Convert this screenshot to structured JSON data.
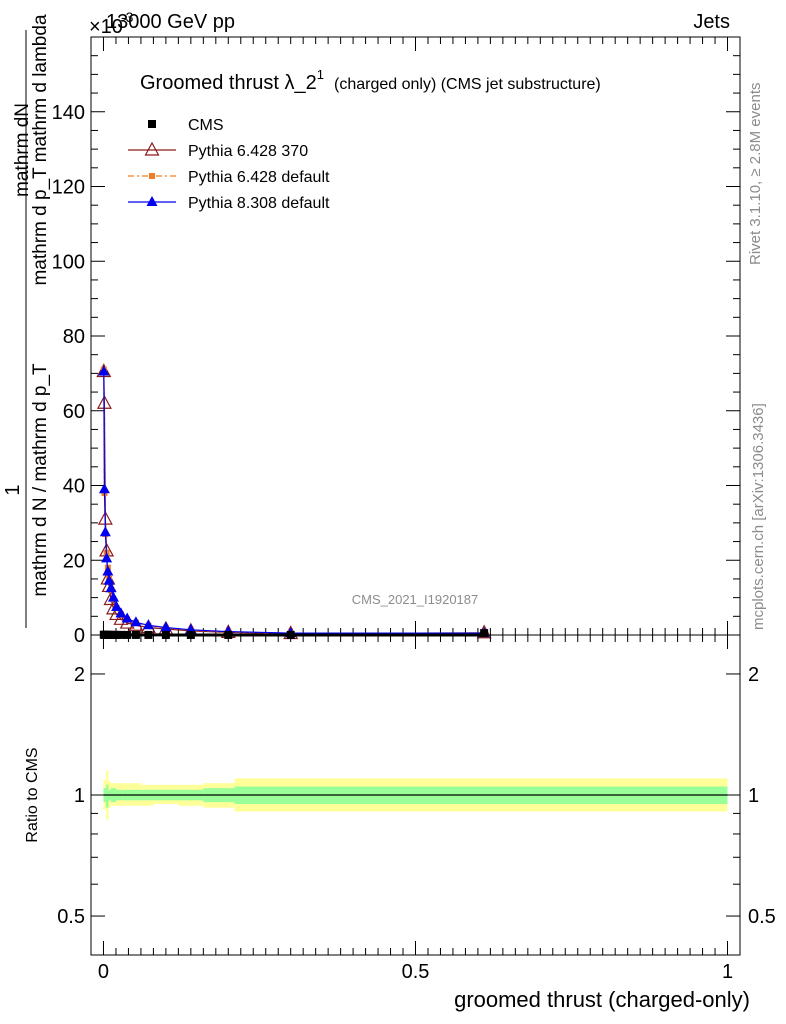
{
  "header": {
    "left": "13000 GeV pp",
    "right": "Jets",
    "exponent_prefix": "×10",
    "exponent_sup": "-3"
  },
  "side_labels": {
    "rivet": "Rivet 3.1.10, ≥ 2.8M events",
    "mcplots": "mcplots.cern.ch [arXiv:1306.3436]"
  },
  "analysis_id": "CMS_2021_I1920187",
  "chart_data": [
    {
      "type": "line",
      "title": "Groomed thrust",
      "title_lambda": "λ_2",
      "title_sup": "1",
      "subtitle": "(charged only) (CMS jet substructure)",
      "ylabel_top": "1",
      "ylabel_num": "mathrm dN",
      "ylabel_den_num": "mathrm d p_T mathrm d lambda",
      "ylabel_den": "mathrm d N / mathrm d p_T",
      "ylim": [
        0,
        160
      ],
      "yticks": [
        0,
        20,
        40,
        60,
        80,
        100,
        120,
        140
      ],
      "xlim": [
        -0.02,
        1.02
      ],
      "legend_position": "top-left",
      "series": [
        {
          "name": "CMS",
          "color": "#000000",
          "marker": "square",
          "x": [
            0.0005,
            0.0015,
            0.003,
            0.005,
            0.007,
            0.009,
            0.012,
            0.016,
            0.021,
            0.028,
            0.038,
            0.052,
            0.072,
            0.1,
            0.14,
            0.2,
            0.3,
            0.61
          ],
          "y": [
            0.08,
            0.06,
            0.05,
            0.05,
            0.04,
            0.04,
            0.04,
            0.03,
            0.03,
            0.03,
            0.02,
            0.02,
            0.02,
            0.01,
            0.01,
            0.01,
            0.01,
            0.5
          ]
        },
        {
          "name": "Pythia 6.428 370",
          "color": "#8b1a1a",
          "marker": "triangle-open",
          "x": [
            0.0005,
            0.0015,
            0.003,
            0.005,
            0.007,
            0.009,
            0.012,
            0.016,
            0.021,
            0.028,
            0.038,
            0.052,
            0.072,
            0.1,
            0.14,
            0.2,
            0.3,
            0.61
          ],
          "y": [
            70.5,
            62,
            31,
            22.5,
            15,
            13,
            9.5,
            7,
            5.5,
            4.2,
            3.2,
            2.6,
            2.0,
            1.6,
            1.1,
            0.7,
            0.4,
            0.6
          ]
        },
        {
          "name": "Pythia 6.428 default",
          "color": "#f07e26",
          "marker": "square-small",
          "x": [
            0.0005,
            0.0015,
            0.003,
            0.005,
            0.007,
            0.009,
            0.012,
            0.016,
            0.021,
            0.028,
            0.038,
            0.052,
            0.072,
            0.1,
            0.14,
            0.2,
            0.3,
            0.61
          ],
          "y": [
            71,
            38,
            27,
            22,
            18,
            15,
            12,
            9.5,
            7.2,
            5.5,
            4.2,
            3.3,
            2.5,
            1.9,
            1.3,
            0.8,
            0.45,
            0.5
          ]
        },
        {
          "name": "Pythia 8.308 default",
          "color": "#0000ee",
          "marker": "triangle",
          "x": [
            0.0005,
            0.0015,
            0.003,
            0.005,
            0.007,
            0.009,
            0.012,
            0.016,
            0.021,
            0.028,
            0.038,
            0.052,
            0.072,
            0.1,
            0.14,
            0.2,
            0.3,
            0.61
          ],
          "y": [
            70.5,
            39,
            27.5,
            20.5,
            17,
            14.5,
            12.5,
            10,
            7.5,
            5.8,
            4.4,
            3.4,
            2.6,
            2.0,
            1.4,
            0.9,
            0.5,
            0.5
          ]
        }
      ]
    },
    {
      "type": "area",
      "ylabel": "Ratio to CMS",
      "xlabel": "groomed thrust (charged-only)",
      "scale": "log",
      "ylim": [
        0.4,
        2.5
      ],
      "yticks": [
        0.5,
        1,
        2
      ],
      "xlim": [
        -0.02,
        1.02
      ],
      "xticks": [
        0,
        0.5,
        1
      ],
      "reference": 1,
      "bands": {
        "x_edges": [
          0,
          0.004,
          0.008,
          0.012,
          0.02,
          0.03,
          0.045,
          0.06,
          0.08,
          0.12,
          0.16,
          0.21,
          1.0
        ],
        "inner_lo": [
          0.96,
          0.93,
          0.97,
          0.96,
          0.97,
          0.97,
          0.97,
          0.97,
          0.97,
          0.97,
          0.96,
          0.95
        ],
        "inner_hi": [
          1.04,
          1.06,
          1.03,
          1.04,
          1.03,
          1.03,
          1.03,
          1.03,
          1.03,
          1.03,
          1.04,
          1.05
        ],
        "outer_lo": [
          0.92,
          0.87,
          0.93,
          0.94,
          0.94,
          0.94,
          0.94,
          0.94,
          0.95,
          0.94,
          0.93,
          0.91
        ],
        "outer_hi": [
          1.09,
          1.15,
          1.08,
          1.07,
          1.07,
          1.07,
          1.07,
          1.06,
          1.06,
          1.06,
          1.07,
          1.1
        ],
        "inner_color": "#99ff99",
        "outer_color": "#ffff99"
      }
    }
  ]
}
